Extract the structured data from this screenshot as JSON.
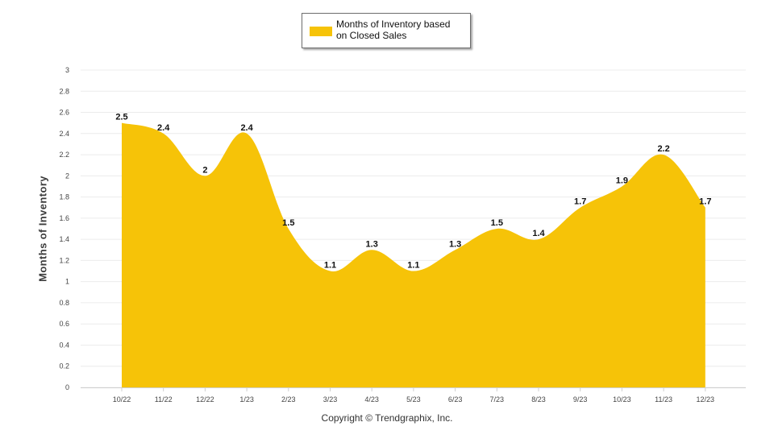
{
  "chart_data": {
    "type": "area",
    "categories": [
      "10/22",
      "11/22",
      "12/22",
      "1/23",
      "2/23",
      "3/23",
      "4/23",
      "5/23",
      "6/23",
      "7/23",
      "8/23",
      "9/23",
      "10/23",
      "11/23",
      "12/23"
    ],
    "series": [
      {
        "name": "Months of Inventory based on Closed Sales",
        "name_lines": [
          "Months of Inventory based",
          "on Closed Sales"
        ],
        "values": [
          2.5,
          2.4,
          2,
          2.4,
          1.5,
          1.1,
          1.3,
          1.1,
          1.3,
          1.5,
          1.4,
          1.7,
          1.9,
          2.2,
          1.7
        ],
        "color": "#f6c308"
      }
    ],
    "data_labels": [
      "2.5",
      "2.4",
      "2",
      "2.4",
      "1.5",
      "1.1",
      "1.3",
      "1.1",
      "1.3",
      "1.5",
      "1.4",
      "1.7",
      "1.9",
      "2.2",
      "1.7"
    ],
    "yticks": [
      0,
      0.2,
      0.4,
      0.6,
      0.8,
      1,
      1.2,
      1.4,
      1.6,
      1.8,
      2,
      2.2,
      2.4,
      2.6,
      2.8,
      3
    ],
    "ytick_labels": [
      "0",
      "0.2",
      "0.4",
      "0.6",
      "0.8",
      "1",
      "1.2",
      "1.4",
      "1.6",
      "1.8",
      "2",
      "2.2",
      "2.4",
      "2.6",
      "2.8",
      "3"
    ],
    "ylim": [
      0,
      3
    ],
    "ylabel": "Months of Inventory",
    "xlabel": "",
    "grid": true,
    "legend": "top-center"
  },
  "footer": {
    "copyright": "Copyright © Trendgraphix, Inc."
  }
}
